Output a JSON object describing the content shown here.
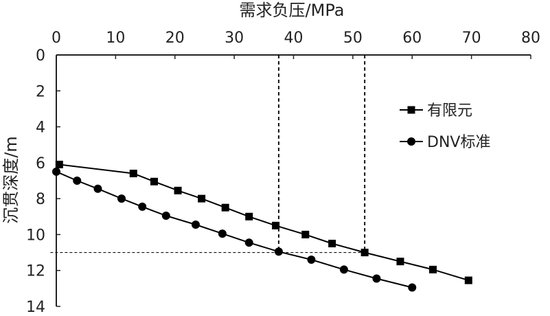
{
  "chart_data": {
    "type": "line",
    "xlabel": "需求负压/MPa",
    "ylabel": "沉贯深度/m",
    "xlim": [
      0,
      80
    ],
    "ylim": [
      0,
      14
    ],
    "x_ticks": [
      "0",
      "10",
      "20",
      "30",
      "40",
      "50",
      "60",
      "70",
      "80"
    ],
    "y_ticks": [
      "0",
      "2",
      "4",
      "6",
      "8",
      "10",
      "12",
      "14"
    ],
    "x_axis_position": "top",
    "y_axis_inverted": true,
    "grid": false,
    "legend_position": "right",
    "series": [
      {
        "name": "有限元",
        "marker": "square",
        "points": [
          {
            "x": 0.5,
            "y": 6.1
          },
          {
            "x": 13.0,
            "y": 6.6
          },
          {
            "x": 16.5,
            "y": 7.05
          },
          {
            "x": 20.5,
            "y": 7.55
          },
          {
            "x": 24.5,
            "y": 8.0
          },
          {
            "x": 28.5,
            "y": 8.5
          },
          {
            "x": 32.5,
            "y": 9.0
          },
          {
            "x": 37.0,
            "y": 9.5
          },
          {
            "x": 42.0,
            "y": 10.0
          },
          {
            "x": 46.5,
            "y": 10.5
          },
          {
            "x": 52.0,
            "y": 11.0
          },
          {
            "x": 58.0,
            "y": 11.5
          },
          {
            "x": 63.5,
            "y": 11.95
          },
          {
            "x": 69.5,
            "y": 12.55
          }
        ]
      },
      {
        "name": "DNV标准",
        "marker": "circle",
        "points": [
          {
            "x": 0.0,
            "y": 6.5
          },
          {
            "x": 3.5,
            "y": 7.0
          },
          {
            "x": 7.0,
            "y": 7.45
          },
          {
            "x": 11.0,
            "y": 8.0
          },
          {
            "x": 14.5,
            "y": 8.45
          },
          {
            "x": 18.5,
            "y": 8.95
          },
          {
            "x": 23.5,
            "y": 9.45
          },
          {
            "x": 28.0,
            "y": 9.95
          },
          {
            "x": 32.5,
            "y": 10.45
          },
          {
            "x": 37.5,
            "y": 10.95
          },
          {
            "x": 43.0,
            "y": 11.4
          },
          {
            "x": 48.5,
            "y": 11.95
          },
          {
            "x": 54.0,
            "y": 12.45
          },
          {
            "x": 60.0,
            "y": 12.95
          }
        ]
      }
    ],
    "reference_lines": [
      {
        "orientation": "vertical",
        "x": 37.5,
        "y_from": 0,
        "y_to": 11.0
      },
      {
        "orientation": "vertical",
        "x": 52.0,
        "y_from": 0,
        "y_to": 11.0
      },
      {
        "orientation": "horizontal",
        "y": 11.0,
        "x_from": -1.0,
        "x_to": 52.0
      }
    ]
  }
}
